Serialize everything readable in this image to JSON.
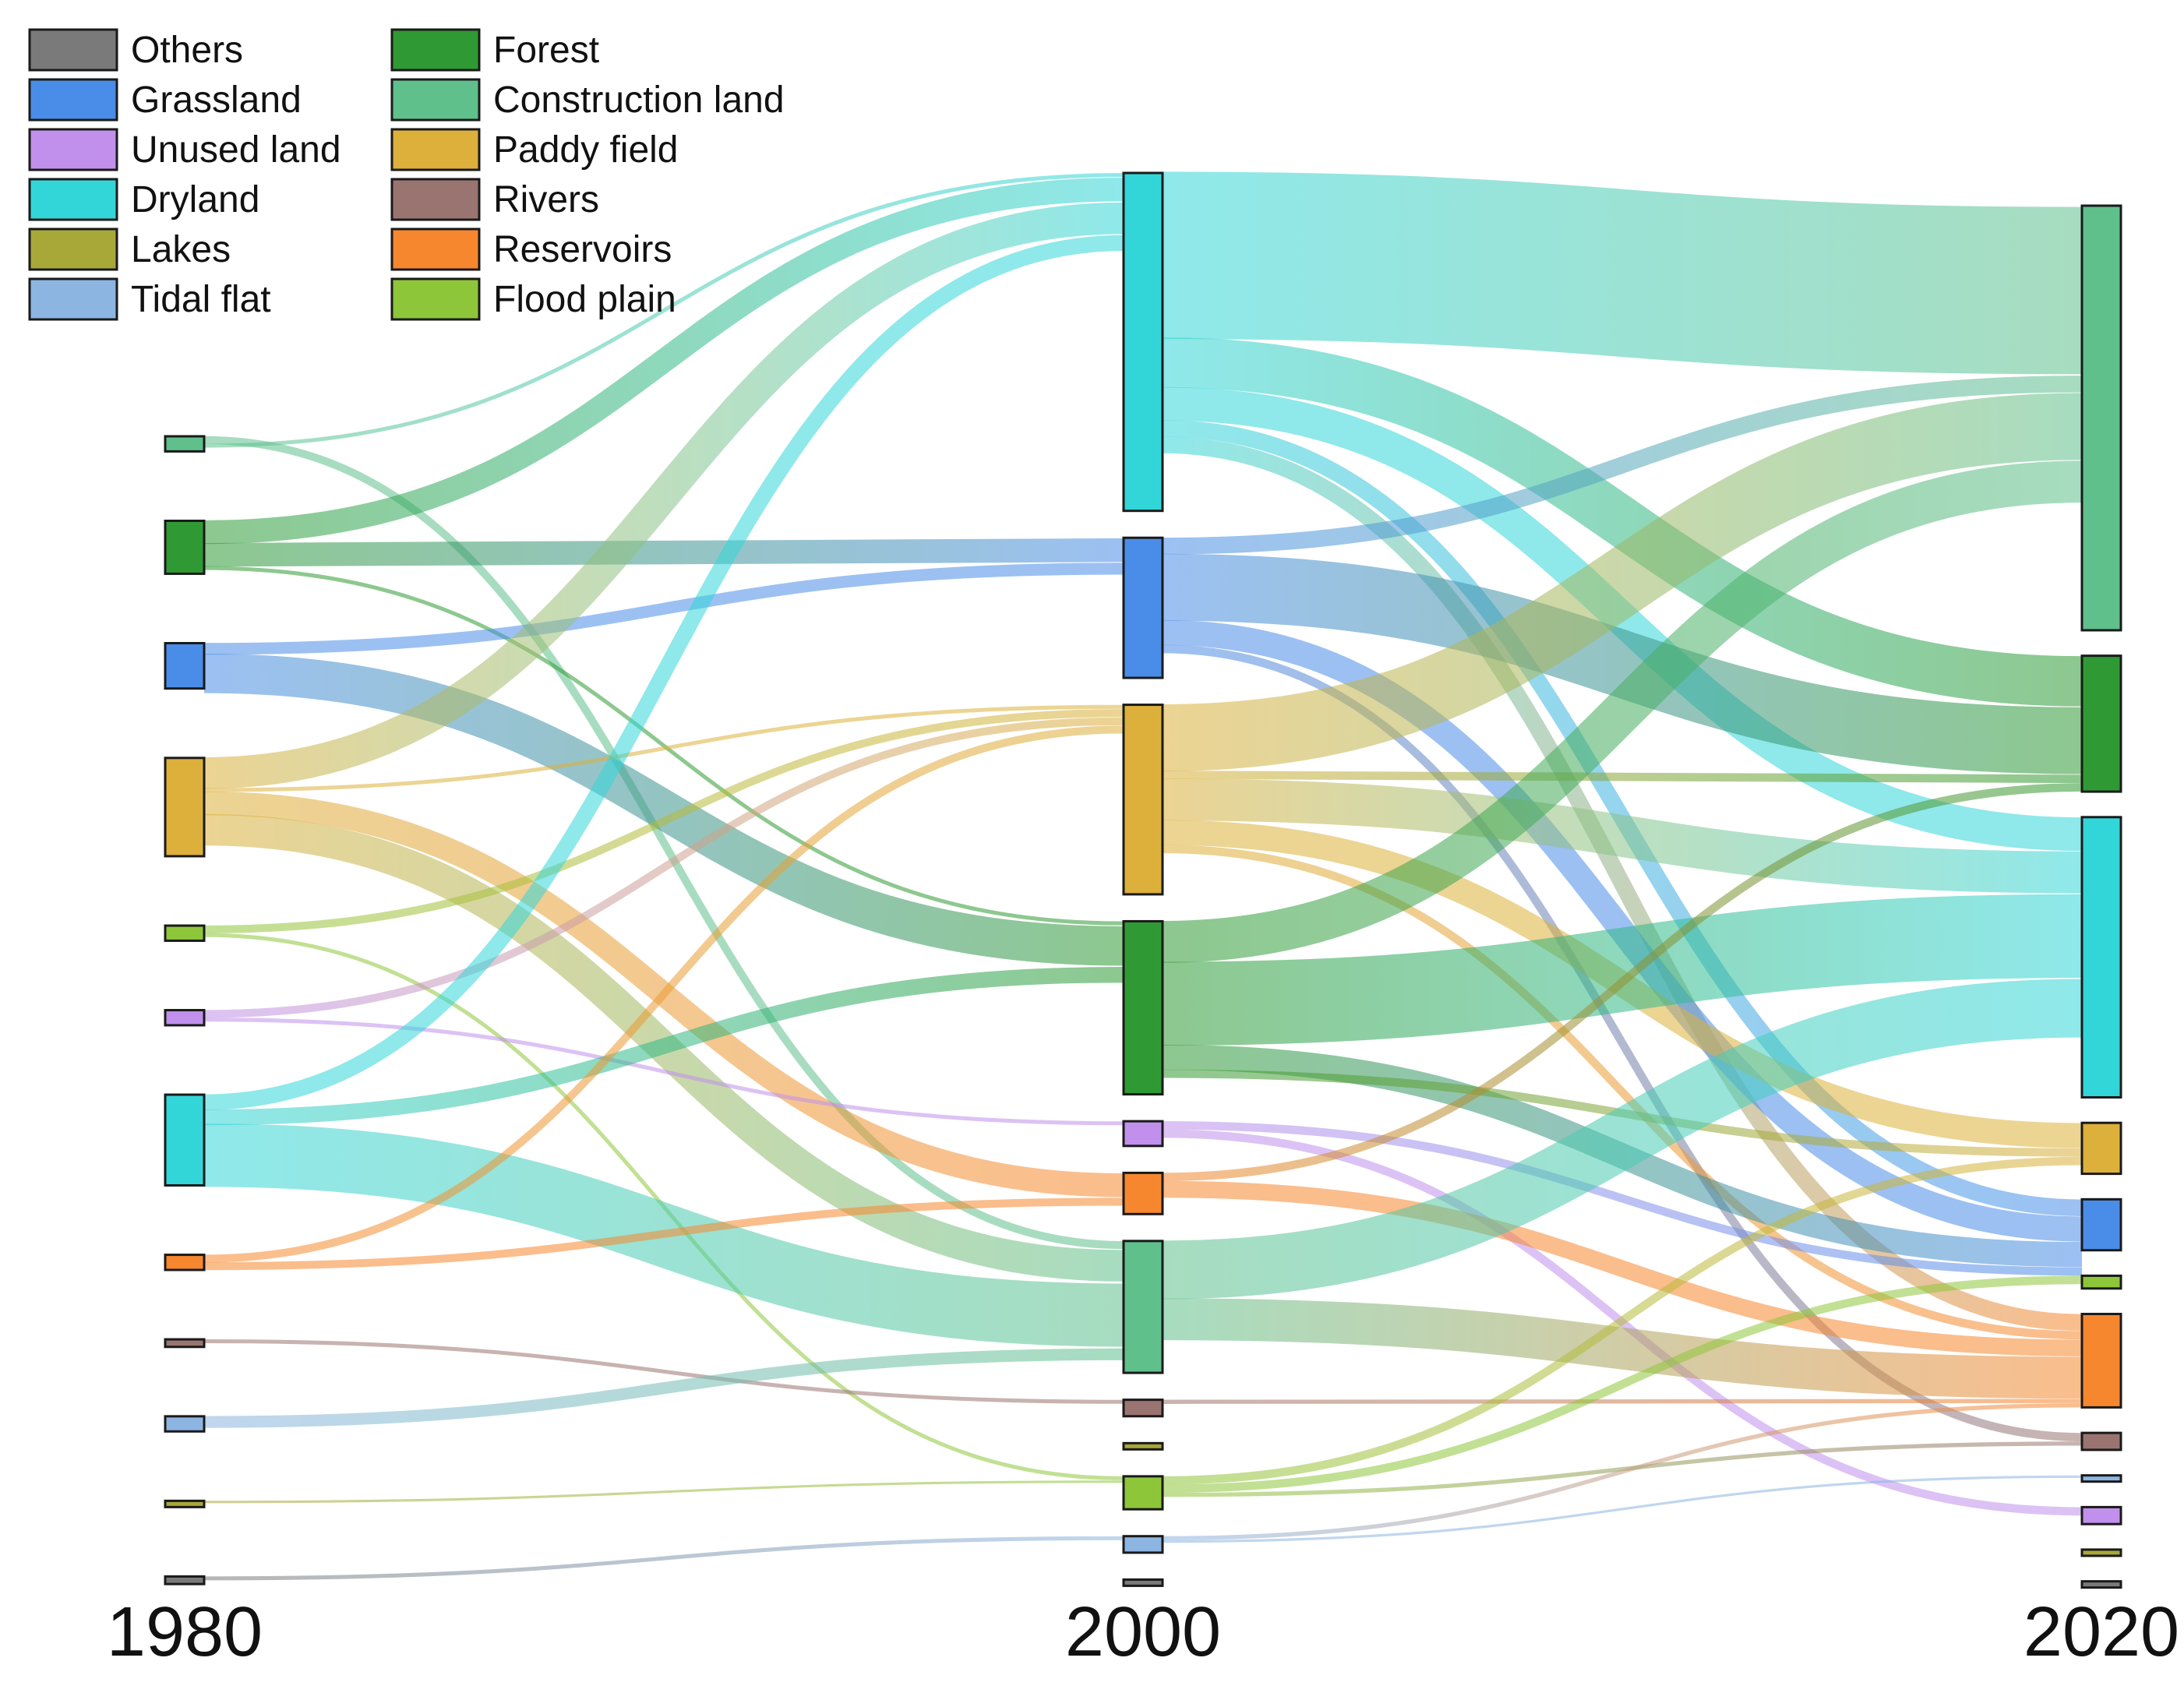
{
  "chart_data": {
    "type": "sankey",
    "title": "",
    "columns": [
      "1980",
      "2000",
      "2020"
    ],
    "legend": [
      {
        "name": "Others",
        "color": "#7a7a7a"
      },
      {
        "name": "Grassland",
        "color": "#4a8de8"
      },
      {
        "name": "Unused land",
        "color": "#c090ec"
      },
      {
        "name": "Dryland",
        "color": "#33d6d8"
      },
      {
        "name": "Lakes",
        "color": "#a7a838"
      },
      {
        "name": "Tidal flat",
        "color": "#8cb5e2"
      },
      {
        "name": "Forest",
        "color": "#2f9a33"
      },
      {
        "name": "Construction land",
        "color": "#5fc08c"
      },
      {
        "name": "Paddy field",
        "color": "#dcb03a"
      },
      {
        "name": "Rivers",
        "color": "#9a7470"
      },
      {
        "name": "Reservoirs",
        "color": "#f7872e"
      },
      {
        "name": "Flood plain",
        "color": "#8ec63a"
      }
    ],
    "nodes": {
      "1980": [
        {
          "category": "Construction land",
          "value": 2
        },
        {
          "category": "Forest",
          "value": 7
        },
        {
          "category": "Grassland",
          "value": 6
        },
        {
          "category": "Paddy field",
          "value": 13
        },
        {
          "category": "Flood plain",
          "value": 2
        },
        {
          "category": "Unused land",
          "value": 2
        },
        {
          "category": "Dryland",
          "value": 12
        },
        {
          "category": "Reservoirs",
          "value": 2
        },
        {
          "category": "Rivers",
          "value": 1
        },
        {
          "category": "Tidal flat",
          "value": 2
        },
        {
          "category": "Lakes",
          "value": 0.5
        },
        {
          "category": "Others",
          "value": 1
        }
      ],
      "2000": [
        {
          "category": "Dryland",
          "value": 41
        },
        {
          "category": "Grassland",
          "value": 17
        },
        {
          "category": "Paddy field",
          "value": 23
        },
        {
          "category": "Forest",
          "value": 21
        },
        {
          "category": "Unused land",
          "value": 3
        },
        {
          "category": "Reservoirs",
          "value": 5
        },
        {
          "category": "Construction land",
          "value": 16
        },
        {
          "category": "Rivers",
          "value": 2
        },
        {
          "category": "Lakes",
          "value": 0.5
        },
        {
          "category": "Flood plain",
          "value": 4
        },
        {
          "category": "Tidal flat",
          "value": 2
        },
        {
          "category": "Others",
          "value": 0.5
        }
      ],
      "2020": [
        {
          "category": "Construction land",
          "value": 50
        },
        {
          "category": "Forest",
          "value": 16
        },
        {
          "category": "Dryland",
          "value": 33
        },
        {
          "category": "Paddy field",
          "value": 6
        },
        {
          "category": "Grassland",
          "value": 6
        },
        {
          "category": "Flood plain",
          "value": 1.5
        },
        {
          "category": "Reservoirs",
          "value": 11
        },
        {
          "category": "Rivers",
          "value": 2
        },
        {
          "category": "Tidal flat",
          "value": 0.5
        },
        {
          "category": "Unused land",
          "value": 2
        },
        {
          "category": "Lakes",
          "value": 0.5
        },
        {
          "category": "Others",
          "value": 0.5
        }
      ]
    },
    "flows": [
      {
        "from_year": "1980",
        "from": "Construction land",
        "to_year": "2000",
        "to": "Construction land",
        "value": 1
      },
      {
        "from_year": "1980",
        "from": "Construction land",
        "to_year": "2000",
        "to": "Dryland",
        "value": 0.5
      },
      {
        "from_year": "1980",
        "from": "Forest",
        "to_year": "2000",
        "to": "Dryland",
        "value": 3
      },
      {
        "from_year": "1980",
        "from": "Forest",
        "to_year": "2000",
        "to": "Grassland",
        "value": 3
      },
      {
        "from_year": "1980",
        "from": "Forest",
        "to_year": "2000",
        "to": "Forest",
        "value": 0.5
      },
      {
        "from_year": "1980",
        "from": "Grassland",
        "to_year": "2000",
        "to": "Grassland",
        "value": 1.5
      },
      {
        "from_year": "1980",
        "from": "Grassland",
        "to_year": "2000",
        "to": "Forest",
        "value": 5
      },
      {
        "from_year": "1980",
        "from": "Paddy field",
        "to_year": "2000",
        "to": "Dryland",
        "value": 4
      },
      {
        "from_year": "1980",
        "from": "Paddy field",
        "to_year": "2000",
        "to": "Paddy field",
        "value": 0.5
      },
      {
        "from_year": "1980",
        "from": "Paddy field",
        "to_year": "2000",
        "to": "Reservoirs",
        "value": 3
      },
      {
        "from_year": "1980",
        "from": "Paddy field",
        "to_year": "2000",
        "to": "Construction land",
        "value": 4
      },
      {
        "from_year": "1980",
        "from": "Flood plain",
        "to_year": "2000",
        "to": "Paddy field",
        "value": 1
      },
      {
        "from_year": "1980",
        "from": "Flood plain",
        "to_year": "2000",
        "to": "Flood plain",
        "value": 0.5
      },
      {
        "from_year": "1980",
        "from": "Unused land",
        "to_year": "2000",
        "to": "Paddy field",
        "value": 1
      },
      {
        "from_year": "1980",
        "from": "Unused land",
        "to_year": "2000",
        "to": "Unused land",
        "value": 0.5
      },
      {
        "from_year": "1980",
        "from": "Dryland",
        "to_year": "2000",
        "to": "Dryland",
        "value": 2
      },
      {
        "from_year": "1980",
        "from": "Dryland",
        "to_year": "2000",
        "to": "Forest",
        "value": 2
      },
      {
        "from_year": "1980",
        "from": "Dryland",
        "to_year": "2000",
        "to": "Construction land",
        "value": 8
      },
      {
        "from_year": "1980",
        "from": "Reservoirs",
        "to_year": "2000",
        "to": "Paddy field",
        "value": 1
      },
      {
        "from_year": "1980",
        "from": "Reservoirs",
        "to_year": "2000",
        "to": "Reservoirs",
        "value": 1
      },
      {
        "from_year": "1980",
        "from": "Rivers",
        "to_year": "2000",
        "to": "Rivers",
        "value": 0.5
      },
      {
        "from_year": "1980",
        "from": "Tidal flat",
        "to_year": "2000",
        "to": "Construction land",
        "value": 1.5
      },
      {
        "from_year": "1980",
        "from": "Lakes",
        "to_year": "2000",
        "to": "Flood plain",
        "value": 0.3
      },
      {
        "from_year": "1980",
        "from": "Others",
        "to_year": "2000",
        "to": "Tidal flat",
        "value": 0.5
      },
      {
        "from_year": "2000",
        "from": "Dryland",
        "to_year": "2020",
        "to": "Construction land",
        "value": 20
      },
      {
        "from_year": "2000",
        "from": "Dryland",
        "to_year": "2020",
        "to": "Forest",
        "value": 6
      },
      {
        "from_year": "2000",
        "from": "Dryland",
        "to_year": "2020",
        "to": "Dryland",
        "value": 4
      },
      {
        "from_year": "2000",
        "from": "Dryland",
        "to_year": "2020",
        "to": "Grassland",
        "value": 2
      },
      {
        "from_year": "2000",
        "from": "Dryland",
        "to_year": "2020",
        "to": "Reservoirs",
        "value": 2
      },
      {
        "from_year": "2000",
        "from": "Grassland",
        "to_year": "2020",
        "to": "Construction land",
        "value": 2
      },
      {
        "from_year": "2000",
        "from": "Grassland",
        "to_year": "2020",
        "to": "Forest",
        "value": 8
      },
      {
        "from_year": "2000",
        "from": "Grassland",
        "to_year": "2020",
        "to": "Grassland",
        "value": 3
      },
      {
        "from_year": "2000",
        "from": "Grassland",
        "to_year": "2020",
        "to": "Rivers",
        "value": 1
      },
      {
        "from_year": "2000",
        "from": "Paddy field",
        "to_year": "2020",
        "to": "Construction land",
        "value": 8
      },
      {
        "from_year": "2000",
        "from": "Paddy field",
        "to_year": "2020",
        "to": "Forest",
        "value": 1
      },
      {
        "from_year": "2000",
        "from": "Paddy field",
        "to_year": "2020",
        "to": "Dryland",
        "value": 5
      },
      {
        "from_year": "2000",
        "from": "Paddy field",
        "to_year": "2020",
        "to": "Paddy field",
        "value": 3
      },
      {
        "from_year": "2000",
        "from": "Paddy field",
        "to_year": "2020",
        "to": "Reservoirs",
        "value": 1
      },
      {
        "from_year": "2000",
        "from": "Forest",
        "to_year": "2020",
        "to": "Construction land",
        "value": 5
      },
      {
        "from_year": "2000",
        "from": "Forest",
        "to_year": "2020",
        "to": "Dryland",
        "value": 10
      },
      {
        "from_year": "2000",
        "from": "Forest",
        "to_year": "2020",
        "to": "Grassland",
        "value": 3
      },
      {
        "from_year": "2000",
        "from": "Forest",
        "to_year": "2020",
        "to": "Paddy field",
        "value": 1
      },
      {
        "from_year": "2000",
        "from": "Unused land",
        "to_year": "2020",
        "to": "Grassland",
        "value": 1
      },
      {
        "from_year": "2000",
        "from": "Unused land",
        "to_year": "2020",
        "to": "Unused land",
        "value": 1
      },
      {
        "from_year": "2000",
        "from": "Reservoirs",
        "to_year": "2020",
        "to": "Forest",
        "value": 1
      },
      {
        "from_year": "2000",
        "from": "Reservoirs",
        "to_year": "2020",
        "to": "Reservoirs",
        "value": 2
      },
      {
        "from_year": "2000",
        "from": "Construction land",
        "to_year": "2020",
        "to": "Dryland",
        "value": 7
      },
      {
        "from_year": "2000",
        "from": "Construction land",
        "to_year": "2020",
        "to": "Reservoirs",
        "value": 5
      },
      {
        "from_year": "2000",
        "from": "Rivers",
        "to_year": "2020",
        "to": "Reservoirs",
        "value": 0.5
      },
      {
        "from_year": "2000",
        "from": "Flood plain",
        "to_year": "2020",
        "to": "Paddy field",
        "value": 1
      },
      {
        "from_year": "2000",
        "from": "Flood plain",
        "to_year": "2020",
        "to": "Flood plain",
        "value": 1
      },
      {
        "from_year": "2000",
        "from": "Flood plain",
        "to_year": "2020",
        "to": "Rivers",
        "value": 0.5
      },
      {
        "from_year": "2000",
        "from": "Tidal flat",
        "to_year": "2020",
        "to": "Reservoirs",
        "value": 0.5
      },
      {
        "from_year": "2000",
        "from": "Tidal flat",
        "to_year": "2020",
        "to": "Tidal flat",
        "value": 0.3
      }
    ]
  }
}
